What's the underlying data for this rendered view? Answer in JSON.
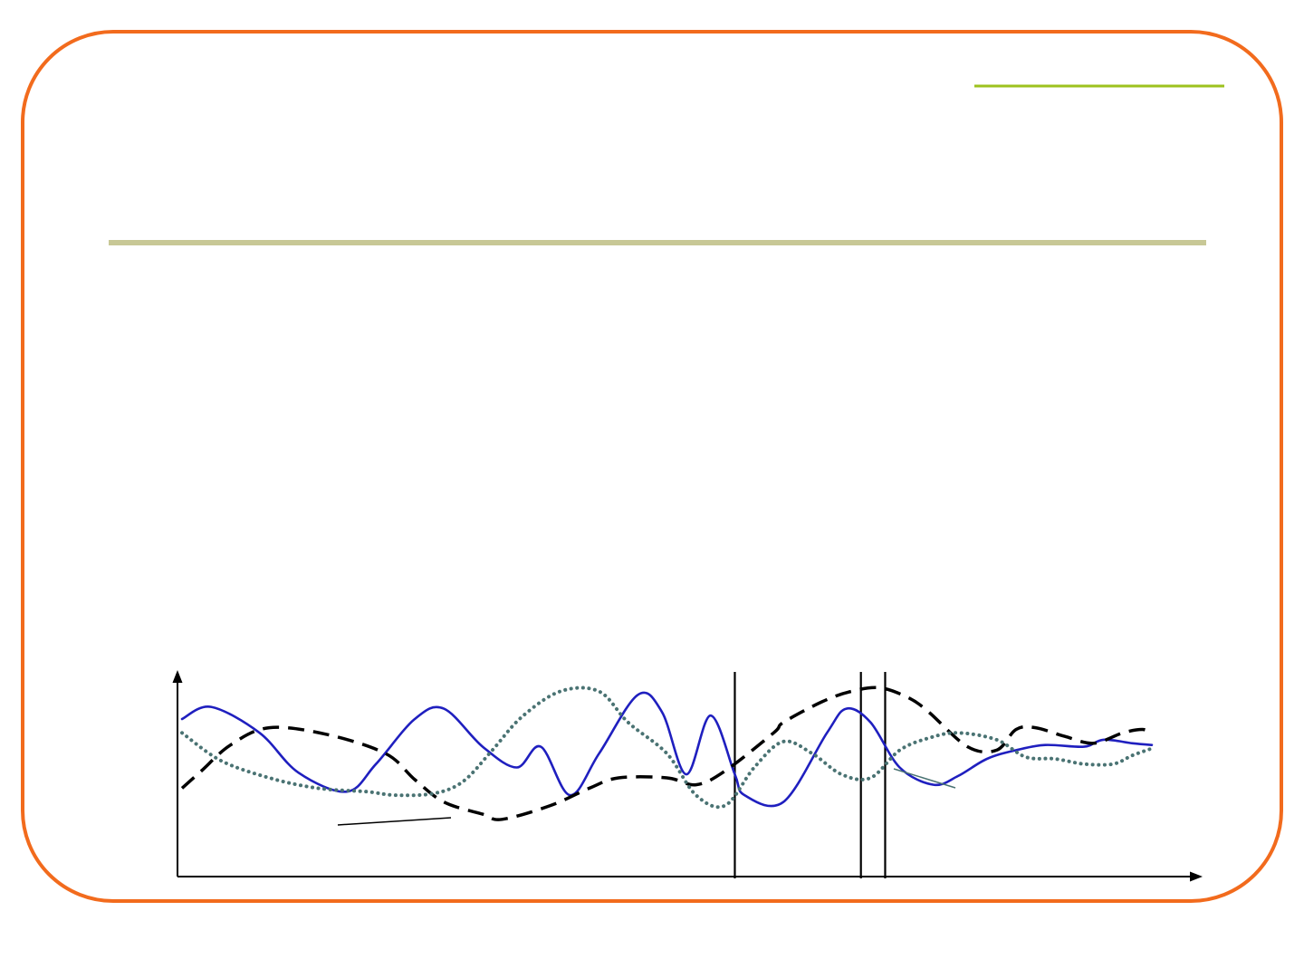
{
  "theme": {
    "frame_color": "#F26B1D",
    "title_rule_color": "#C8C896",
    "accent_rule_color": "#9DC21E",
    "axis_color": "#000000"
  },
  "slide": {
    "title": "",
    "body": ""
  },
  "chart_data": {
    "type": "line",
    "title": "",
    "xlabel": "",
    "ylabel": "",
    "x_axis_arrow": true,
    "y_axis_arrow": true,
    "tick_labels": false,
    "grid": false,
    "xlim": [
      0,
      100
    ],
    "ylim": [
      0,
      100
    ],
    "series": [
      {
        "style": "solid",
        "color": "#1F1FBF",
        "x": [
          0,
          3,
          8,
          12,
          17,
          20,
          24,
          27,
          31,
          34.5,
          37,
          40,
          43,
          47,
          49.5,
          52,
          54.5,
          57,
          58,
          62,
          66.5,
          68.5,
          71,
          74,
          77.5,
          80,
          83,
          86,
          89,
          93,
          95,
          98,
          100
        ],
        "y": [
          78,
          85,
          70,
          47,
          36,
          52,
          78,
          84,
          62,
          50,
          62,
          34,
          58,
          92,
          82,
          46,
          80,
          46,
          34,
          30,
          70,
          84,
          76,
          50,
          40,
          45,
          55,
          60,
          63,
          62,
          66,
          64,
          63
        ]
      },
      {
        "style": "dashed",
        "color": "#000000",
        "x": [
          0,
          2,
          5,
          9,
          15,
          21,
          24,
          27,
          31,
          33,
          38,
          42,
          45,
          50,
          53,
          56,
          61,
          62,
          66,
          69,
          72,
          75,
          77,
          81,
          84,
          86,
          88,
          91,
          94,
          97,
          99,
          100
        ],
        "y": [
          38,
          48,
          63,
          73,
          69,
          58,
          43,
          30,
          23,
          20,
          28,
          38,
          44,
          44,
          40,
          48,
          70,
          76,
          88,
          94,
          96,
          90,
          82,
          62,
          60,
          72,
          73,
          68,
          64,
          70,
          72,
          70
        ]
      },
      {
        "style": "dotted",
        "color": "#4A7373",
        "x": [
          0,
          4,
          9,
          14,
          19,
          22,
          26,
          29,
          32,
          35,
          39,
          43,
          46,
          50,
          53,
          56,
          59,
          62,
          65,
          68,
          71,
          74,
          77,
          80,
          84,
          87,
          90,
          93,
          96,
          98,
          100
        ],
        "y": [
          70,
          54,
          44,
          38,
          36,
          34,
          35,
          42,
          60,
          79,
          94,
          94,
          76,
          58,
          34,
          28,
          50,
          65,
          58,
          46,
          44,
          60,
          67,
          70,
          66,
          56,
          55,
          52,
          52,
          57,
          61
        ]
      }
    ],
    "vertical_markers": [
      57,
      70,
      72.5
    ]
  }
}
